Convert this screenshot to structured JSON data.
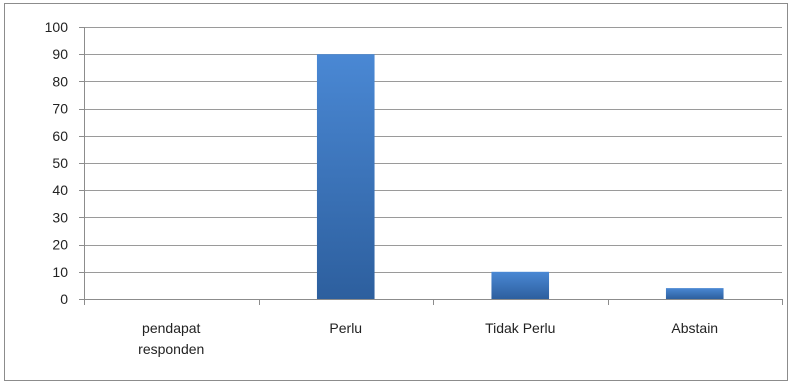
{
  "chart_data": {
    "type": "bar",
    "categories": [
      "pendapat responden",
      "Perlu",
      "Tidak Perlu",
      "Abstain"
    ],
    "category_lines": [
      [
        "pendapat",
        "responden"
      ],
      [
        "Perlu"
      ],
      [
        "Tidak Perlu"
      ],
      [
        "Abstain"
      ]
    ],
    "values": [
      0,
      90,
      10,
      4
    ],
    "ylim": [
      0,
      100
    ],
    "yticks": [
      0,
      10,
      20,
      30,
      40,
      50,
      60,
      70,
      80,
      90,
      100
    ],
    "grid": true,
    "legend": false,
    "bar_color_top": "#4a88d4",
    "bar_color_bottom": "#2d5f9e",
    "gridline_color": "#9a9a9a"
  }
}
